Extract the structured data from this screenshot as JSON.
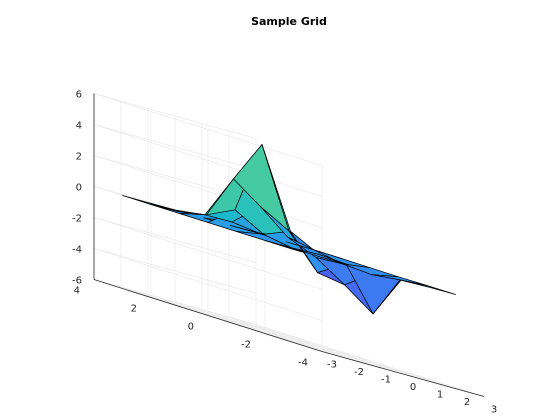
{
  "chart_data": {
    "type": "surface",
    "title": "Sample Grid",
    "xlabel": "",
    "ylabel": "",
    "zlabel": "",
    "x": [
      -3,
      -2,
      -1,
      0,
      1,
      2,
      3
    ],
    "y": [
      -3,
      -2,
      -1,
      0,
      1,
      2,
      3
    ],
    "z": [
      [
        0.0,
        0.0,
        0.0,
        -0.01,
        0.0,
        0.0,
        0.0
      ],
      [
        0.0,
        0.0,
        0.07,
        -0.06,
        -2.8,
        -0.12,
        0.0
      ],
      [
        0.0,
        0.3,
        0.98,
        -1.2,
        -1.5,
        -0.36,
        -0.02
      ],
      [
        0.0,
        1.3,
        6.0,
        0.9,
        -0.32,
        -0.26,
        -0.01
      ],
      [
        0.0,
        0.4,
        3.2,
        1.9,
        0.42,
        0.06,
        0.0
      ],
      [
        0.0,
        0.03,
        0.3,
        0.32,
        0.09,
        0.01,
        0.0
      ],
      [
        0.0,
        0.0,
        0.01,
        0.01,
        0.0,
        0.0,
        0.0
      ]
    ],
    "xlim": [
      -3,
      3
    ],
    "ylim": [
      -4,
      4
    ],
    "zlim": [
      -6,
      6
    ],
    "xticks": [
      "-3",
      "-2",
      "-1",
      "0",
      "1",
      "2",
      "3"
    ],
    "yticks": [
      "-4",
      "-2",
      "0",
      "2",
      "4"
    ],
    "zticks": [
      "-6",
      "-4",
      "-2",
      "0",
      "2",
      "4",
      "6"
    ],
    "grid": true,
    "colormap": [
      "#3e26a8",
      "#4764f0",
      "#2e97f0",
      "#17bbc8",
      "#47cba0",
      "#c6bc44",
      "#f6da23"
    ],
    "edge_color": "#000000"
  }
}
